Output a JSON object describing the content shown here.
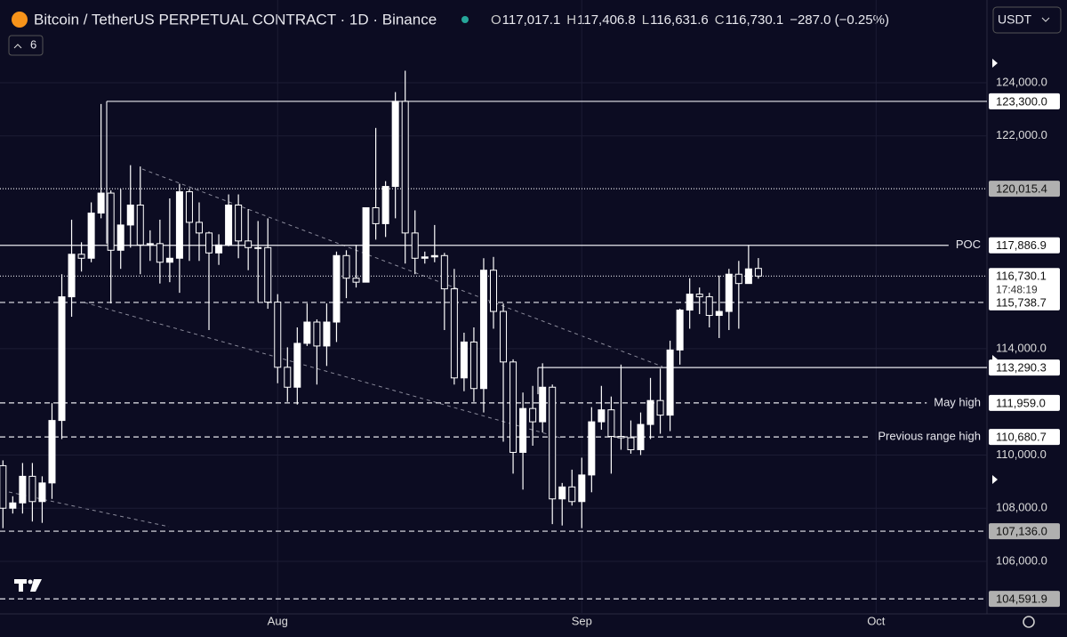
{
  "header": {
    "title": "Bitcoin / TetherUS PERPETUAL CONTRACT · 1D · Binance",
    "ohlc": [
      {
        "label": "O",
        "value": "117,017.1"
      },
      {
        "label": "H",
        "value": "117,406.8"
      },
      {
        "label": "L",
        "value": "116,631.6"
      },
      {
        "label": "C",
        "value": "116,730.1"
      }
    ],
    "change": "−287.0 (−0.25%)",
    "currency": "USDT",
    "indicators": "6"
  },
  "chart_data": {
    "type": "candlestick",
    "up_color": "#ffffff",
    "down_color": "#0c0c22",
    "wick_color": "#ffffff",
    "open": [
      109600,
      108000,
      108200,
      109200,
      108250,
      108950,
      111300,
      115950,
      117550,
      117400,
      119100,
      119850,
      117700,
      118650,
      119400,
      117900,
      117950,
      117250,
      117400,
      119900,
      118750,
      118350,
      117600,
      117900,
      119400,
      118050,
      117800,
      117800,
      115750,
      113300,
      112550,
      114200,
      115000,
      114100,
      115000,
      117500,
      116650,
      116500,
      119300,
      118700,
      120100,
      123300,
      118350,
      117400,
      117450,
      117500,
      116250,
      112900,
      114250,
      112500,
      116950,
      115400,
      113500,
      110100,
      111750,
      111250,
      112550,
      108350,
      108800,
      108250,
      109250,
      111250,
      111700,
      110700,
      110650,
      110200,
      111150,
      112050,
      111500,
      113950,
      115450,
      116050,
      115950,
      115250,
      115400,
      116800,
      116450,
      117017.1
    ],
    "high": [
      109800,
      108450,
      109700,
      109700,
      109200,
      111950,
      116800,
      118850,
      118000,
      119500,
      123200,
      119950,
      120000,
      120900,
      120850,
      118450,
      118850,
      119650,
      120200,
      120000,
      119500,
      118400,
      118300,
      119800,
      119800,
      119250,
      118800,
      118900,
      116050,
      114050,
      114800,
      115700,
      115100,
      115700,
      117650,
      117700,
      117900,
      119300,
      122300,
      120300,
      123650,
      124450,
      119200,
      117650,
      118650,
      117600,
      117000,
      114600,
      114800,
      117400,
      117450,
      115700,
      113600,
      112350,
      112600,
      113450,
      112650,
      108950,
      109450,
      109900,
      111800,
      112600,
      112200,
      113400,
      111300,
      111600,
      112900,
      113250,
      114300,
      115500,
      116650,
      116300,
      116100,
      116750,
      117000,
      117300,
      117900,
      117406.8
    ],
    "low": [
      107250,
      107800,
      107800,
      107500,
      107450,
      108350,
      110600,
      115200,
      116900,
      117250,
      118900,
      115700,
      117000,
      117800,
      116800,
      117300,
      116450,
      116500,
      116100,
      117300,
      117300,
      114700,
      117150,
      117850,
      117400,
      116950,
      115750,
      115500,
      112700,
      112000,
      111900,
      114100,
      112650,
      113350,
      114250,
      115900,
      116300,
      116500,
      118100,
      118200,
      118900,
      117200,
      116800,
      117200,
      117250,
      114700,
      112650,
      112400,
      112000,
      111600,
      114750,
      110500,
      109300,
      108700,
      110350,
      110850,
      107400,
      107350,
      108100,
      107250,
      108600,
      110950,
      109300,
      110200,
      110050,
      110000,
      110600,
      110800,
      110900,
      113400,
      114750,
      115300,
      114800,
      114400,
      114700,
      114750,
      116450,
      116631.6
    ],
    "close": [
      108000,
      108200,
      109200,
      108250,
      108950,
      111300,
      115950,
      117550,
      117400,
      119100,
      119850,
      117700,
      118650,
      119400,
      117900,
      117950,
      117250,
      117400,
      119900,
      118750,
      118350,
      117600,
      117900,
      119400,
      118050,
      117800,
      117800,
      115750,
      113300,
      112550,
      114200,
      115000,
      114100,
      115000,
      117500,
      116650,
      116500,
      119300,
      118700,
      120100,
      123300,
      118350,
      117400,
      117450,
      117500,
      116250,
      112900,
      114250,
      112500,
      116950,
      115400,
      113500,
      110100,
      111750,
      111250,
      112550,
      108350,
      108800,
      108250,
      109250,
      111250,
      111700,
      110700,
      110650,
      110200,
      111150,
      112050,
      111500,
      113950,
      115450,
      116050,
      115950,
      115250,
      115400,
      116800,
      116450,
      117000,
      116730.1
    ],
    "xlim": [
      -0.3,
      100.3
    ],
    "xticks": [
      {
        "value": 28,
        "label": "Aug"
      },
      {
        "value": 59,
        "label": "Sep"
      },
      {
        "value": 89,
        "label": "Oct"
      }
    ],
    "ylim": [
      104027,
      127111
    ],
    "yticks": [
      {
        "value": 106000,
        "label": "106,000.0"
      },
      {
        "value": 108000,
        "label": "108,000.0"
      },
      {
        "value": 110000,
        "label": "110,000.0"
      },
      {
        "value": 114000,
        "label": "114,000.0"
      },
      {
        "value": 122000,
        "label": "122,000.0"
      },
      {
        "value": 124000,
        "label": "124,000.0"
      }
    ],
    "grid": true,
    "levels": [
      {
        "value": 123300,
        "label": "123,300.0",
        "style": "solid",
        "box_color": "#ffffff"
      },
      {
        "value": 120015.4,
        "label": "120,015.4",
        "style": "dotted",
        "box_color": "#b0b0b0"
      },
      {
        "value": 117886.9,
        "label": "117,886.9",
        "style": "solid",
        "box_color": "#ffffff",
        "note": "POC"
      },
      {
        "value": 116730.1,
        "label": "116,730.1",
        "style": "dotted",
        "box_color": "#ffffff",
        "countdown": "17:48:19"
      },
      {
        "value": 115738.7,
        "label": "115,738.7",
        "style": "dashed",
        "box_color": "#ffffff"
      },
      {
        "value": 113290.3,
        "label": "113,290.3",
        "style": "solid",
        "box_color": "#ffffff"
      },
      {
        "value": 111959,
        "label": "111,959.0",
        "style": "dashed",
        "box_color": "#ffffff",
        "note": "May high"
      },
      {
        "value": 110680.7,
        "label": "110,680.7",
        "style": "dashed",
        "box_color": "#ffffff",
        "note": "Previous range high"
      },
      {
        "value": 107136,
        "label": "107,136.0",
        "style": "dashed",
        "box_color": "#b0b0b0"
      },
      {
        "value": 104591.9,
        "label": "104,591.9",
        "style": "dashed",
        "box_color": "#b0b0b0"
      }
    ]
  }
}
